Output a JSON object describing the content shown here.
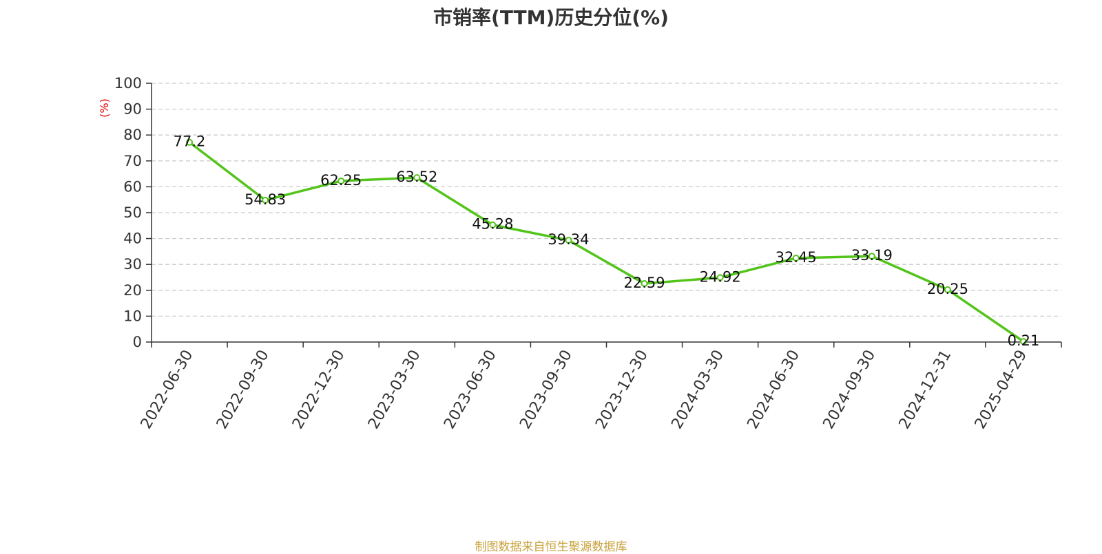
{
  "title": "市销率(TTM)历史分位(%)",
  "source": "制图数据来自恒生聚源数据库",
  "colors": {
    "line": "#52c41a",
    "unit": "#e60000",
    "grid": "#cccccc",
    "axis": "#333333",
    "source": "#c8a23c"
  },
  "chart_data": {
    "type": "line",
    "title": "市销率(TTM)历史分位(%)",
    "ylabel": "(%)",
    "xlabel": "",
    "ylim": [
      0,
      100
    ],
    "yticks": [
      0,
      10,
      20,
      30,
      40,
      50,
      60,
      70,
      80,
      90,
      100
    ],
    "grid": true,
    "categories": [
      "2022-06-30",
      "2022-09-30",
      "2022-12-30",
      "2023-03-30",
      "2023-06-30",
      "2023-09-30",
      "2023-12-30",
      "2024-03-30",
      "2024-06-30",
      "2024-09-30",
      "2024-12-31",
      "2025-04-29"
    ],
    "series": [
      {
        "values": [
          77.2,
          54.83,
          62.25,
          63.52,
          45.28,
          39.34,
          22.59,
          24.92,
          32.45,
          33.19,
          20.25,
          0.21
        ],
        "labels": [
          "77.2",
          "54.83",
          "62.25",
          "63.52",
          "45.28",
          "39.34",
          "22.59",
          "24.92",
          "32.45",
          "33.19",
          "20.25",
          "0.21"
        ]
      }
    ]
  }
}
